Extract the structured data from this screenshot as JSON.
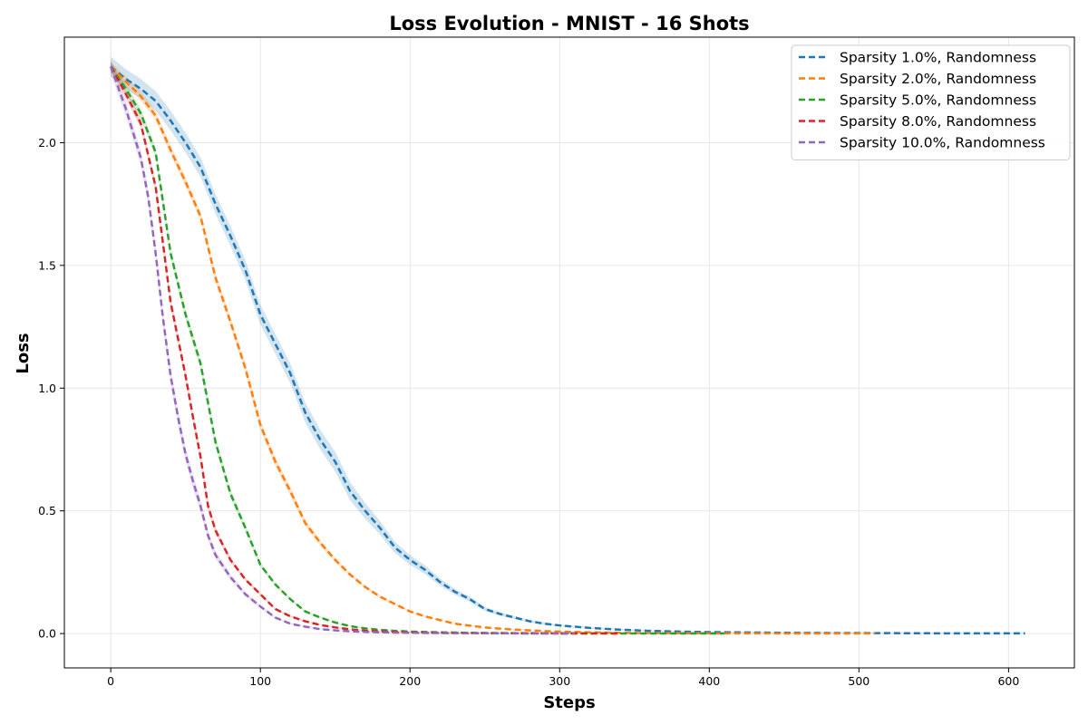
{
  "chart_data": {
    "type": "line",
    "title": "Loss Evolution - MNIST - 16 Shots",
    "xlabel": "Steps",
    "ylabel": "Loss",
    "xlim": [
      -31,
      644
    ],
    "ylim": [
      -0.14,
      2.43
    ],
    "xticks": [
      0,
      100,
      200,
      300,
      400,
      500,
      600
    ],
    "xtick_labels": [
      "0",
      "100",
      "200",
      "300",
      "400",
      "500",
      "600"
    ],
    "yticks": [
      0.0,
      0.5,
      1.0,
      1.5,
      2.0
    ],
    "ytick_labels": [
      "0.0",
      "0.5",
      "1.0",
      "1.5",
      "2.0"
    ],
    "grid": true,
    "legend_position": "top-right",
    "line_style": "dashed",
    "series": [
      {
        "name": "Sparsity 1.0%, Randomness",
        "color": "#1f77b4",
        "band": 0.04,
        "x": [
          0,
          10,
          20,
          30,
          40,
          50,
          60,
          70,
          80,
          90,
          100,
          110,
          120,
          130,
          140,
          150,
          160,
          170,
          180,
          190,
          200,
          210,
          220,
          230,
          240,
          250,
          260,
          270,
          280,
          290,
          300,
          320,
          340,
          360,
          380,
          400,
          450,
          500,
          550,
          611
        ],
        "y": [
          2.31,
          2.26,
          2.22,
          2.17,
          2.09,
          2.0,
          1.9,
          1.75,
          1.62,
          1.48,
          1.3,
          1.18,
          1.06,
          0.9,
          0.79,
          0.7,
          0.58,
          0.5,
          0.43,
          0.35,
          0.3,
          0.26,
          0.21,
          0.17,
          0.14,
          0.1,
          0.08,
          0.065,
          0.05,
          0.04,
          0.033,
          0.023,
          0.016,
          0.011,
          0.008,
          0.006,
          0.003,
          0.002,
          0.001,
          0.001
        ]
      },
      {
        "name": "Sparsity 2.0%, Randomness",
        "color": "#ff7f0e",
        "band": 0.02,
        "x": [
          0,
          10,
          20,
          30,
          40,
          50,
          60,
          70,
          80,
          90,
          100,
          110,
          120,
          130,
          140,
          150,
          160,
          170,
          180,
          190,
          200,
          210,
          220,
          230,
          240,
          250,
          260,
          270,
          280,
          290,
          300,
          320,
          340,
          360,
          380,
          400,
          450,
          511
        ],
        "y": [
          2.31,
          2.25,
          2.19,
          2.11,
          1.97,
          1.84,
          1.7,
          1.45,
          1.27,
          1.08,
          0.85,
          0.7,
          0.58,
          0.45,
          0.37,
          0.3,
          0.24,
          0.19,
          0.15,
          0.12,
          0.09,
          0.07,
          0.055,
          0.04,
          0.032,
          0.025,
          0.02,
          0.016,
          0.013,
          0.01,
          0.008,
          0.005,
          0.003,
          0.002,
          0.0015,
          0.001,
          0.0005,
          0.0005
        ]
      },
      {
        "name": "Sparsity 5.0%, Randomness",
        "color": "#2ca02c",
        "band": 0.02,
        "x": [
          0,
          10,
          20,
          30,
          40,
          50,
          60,
          70,
          80,
          90,
          100,
          110,
          120,
          130,
          140,
          150,
          160,
          170,
          180,
          190,
          200,
          220,
          240,
          260,
          280,
          300,
          320,
          340,
          360,
          380,
          410
        ],
        "y": [
          2.31,
          2.22,
          2.12,
          1.96,
          1.55,
          1.3,
          1.1,
          0.78,
          0.57,
          0.43,
          0.28,
          0.2,
          0.14,
          0.09,
          0.065,
          0.045,
          0.03,
          0.021,
          0.015,
          0.011,
          0.008,
          0.005,
          0.003,
          0.002,
          0.0015,
          0.001,
          0.0008,
          0.0005,
          0.0004,
          0.0003,
          0.0002
        ]
      },
      {
        "name": "Sparsity 8.0%, Randomness",
        "color": "#d62728",
        "band": 0.02,
        "x": [
          0,
          10,
          20,
          30,
          40,
          50,
          55,
          60,
          65,
          70,
          80,
          90,
          100,
          110,
          120,
          130,
          140,
          150,
          160,
          170,
          180,
          200,
          220,
          240,
          260,
          280,
          300,
          320,
          340
        ],
        "y": [
          2.31,
          2.2,
          2.08,
          1.82,
          1.35,
          1.05,
          0.88,
          0.72,
          0.52,
          0.42,
          0.3,
          0.22,
          0.16,
          0.1,
          0.07,
          0.05,
          0.035,
          0.025,
          0.017,
          0.012,
          0.009,
          0.005,
          0.003,
          0.002,
          0.0012,
          0.0008,
          0.0005,
          0.0003,
          0.0002
        ]
      },
      {
        "name": "Sparsity 10.0%, Randomness",
        "color": "#9467bd",
        "band": 0.03,
        "x": [
          0,
          10,
          20,
          25,
          30,
          35,
          40,
          45,
          50,
          55,
          60,
          65,
          70,
          80,
          90,
          100,
          110,
          120,
          130,
          140,
          150,
          160,
          180,
          200,
          220,
          240,
          260,
          280,
          300,
          310
        ],
        "y": [
          2.31,
          2.14,
          1.94,
          1.78,
          1.55,
          1.28,
          1.05,
          0.88,
          0.73,
          0.62,
          0.52,
          0.4,
          0.32,
          0.23,
          0.16,
          0.11,
          0.065,
          0.04,
          0.028,
          0.018,
          0.013,
          0.009,
          0.005,
          0.003,
          0.002,
          0.0012,
          0.0008,
          0.0005,
          0.0003,
          0.0002
        ]
      }
    ]
  }
}
